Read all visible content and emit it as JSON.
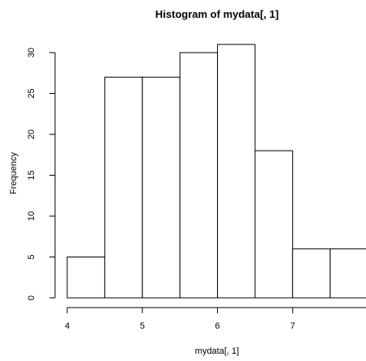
{
  "chart_data": {
    "type": "bar",
    "title": "Histogram of mydata[, 1]",
    "xlabel": "mydata[, 1]",
    "ylabel": "Frequency",
    "bins": [
      {
        "start": 4.0,
        "end": 4.5,
        "count": 5
      },
      {
        "start": 4.5,
        "end": 5.0,
        "count": 27
      },
      {
        "start": 5.0,
        "end": 5.5,
        "count": 27
      },
      {
        "start": 5.5,
        "end": 6.0,
        "count": 30
      },
      {
        "start": 6.0,
        "end": 6.5,
        "count": 31
      },
      {
        "start": 6.5,
        "end": 7.0,
        "count": 18
      },
      {
        "start": 7.0,
        "end": 7.5,
        "count": 6
      },
      {
        "start": 7.5,
        "end": 8.0,
        "count": 6
      }
    ],
    "x_ticks": [
      "4",
      "5",
      "6",
      "7"
    ],
    "y_ticks": [
      "0",
      "5",
      "10",
      "15",
      "20",
      "25",
      "30"
    ],
    "grid": false,
    "legend": "none"
  }
}
